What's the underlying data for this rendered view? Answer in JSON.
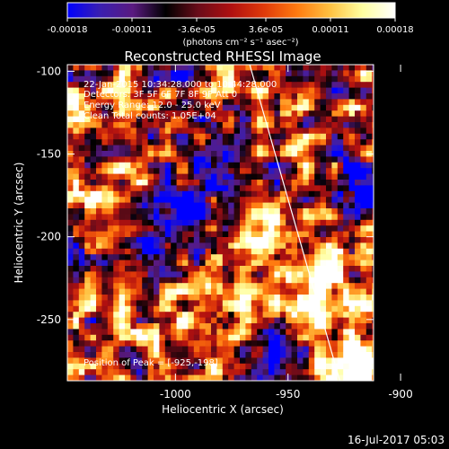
{
  "colorbar": {
    "tick_labels": [
      "-0.00018",
      "-0.00011",
      "-3.6e-05",
      "3.6e-05",
      "0.00011",
      "0.00018"
    ],
    "unit_label": "(photons cm⁻² s⁻¹ asec⁻²)",
    "range": [
      -0.00018,
      0.00018
    ],
    "stops": [
      "#0000ff",
      "#3a1fb0",
      "#5a1a80",
      "#000000",
      "#6a0c1a",
      "#b01010",
      "#e03a0a",
      "#ff7a10",
      "#ffc040",
      "#ffffa0",
      "#ffffff"
    ]
  },
  "info": {
    "time_range": "22-Jan-2015 10:34:28.000 to 10:44:28.000",
    "detectors": "Detectors: 3F 5F 6F 7F 8F 9F  Att 0",
    "energy": "Energy Range: 12.0 - 25.0 keV",
    "clean": "Clean    Total counts: 1.05E+04",
    "peak": "Position of Peak = [-925,-198]"
  },
  "footer_timestamp": "16-Jul-2017 05:03",
  "chart_data": {
    "type": "heatmap",
    "title": "Reconstructed RHESSI Image",
    "xlabel": "Heliocentric X (arcsec)",
    "ylabel": "Heliocentric Y (arcsec)",
    "xlim": [
      -1048,
      -912
    ],
    "ylim": [
      -287,
      -96
    ],
    "x_ticks": [
      -1000,
      -950,
      -900
    ],
    "x_tick_labels": [
      "-1000",
      "-950",
      "-900"
    ],
    "y_ticks": [
      -100,
      -150,
      -200,
      -250
    ],
    "y_tick_labels": [
      "-100",
      "-150",
      "-200",
      "-250"
    ],
    "limb_line": [
      [
        -967,
        -96
      ],
      [
        -927,
        -287
      ]
    ],
    "peak_position": [
      -925,
      -198
    ]
  }
}
